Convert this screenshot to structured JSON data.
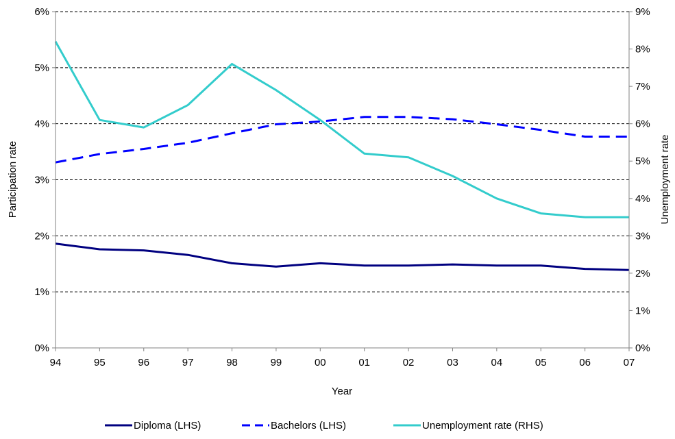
{
  "chart_data": {
    "type": "line",
    "xlabel": "Year",
    "ylabel_left": "Participation rate",
    "ylabel_right": "Unemployment rate",
    "categories": [
      "94",
      "95",
      "96",
      "97",
      "98",
      "99",
      "00",
      "01",
      "02",
      "03",
      "04",
      "05",
      "06",
      "07"
    ],
    "ylim_left": [
      0,
      6
    ],
    "ylim_right": [
      0,
      9
    ],
    "yticks_left": [
      "0%",
      "1%",
      "2%",
      "3%",
      "4%",
      "5%",
      "6%"
    ],
    "yticks_right": [
      "0%",
      "1%",
      "2%",
      "3%",
      "4%",
      "5%",
      "6%",
      "7%",
      "8%",
      "9%"
    ],
    "grid": "horizontal dashed",
    "legend_position": "bottom",
    "series": [
      {
        "name": "Diploma (LHS)",
        "axis": "left",
        "color": "#000080",
        "style": "solid",
        "values": [
          1.86,
          1.76,
          1.74,
          1.66,
          1.51,
          1.45,
          1.51,
          1.47,
          1.47,
          1.49,
          1.47,
          1.47,
          1.41,
          1.39
        ]
      },
      {
        "name": "Bachelors (LHS)",
        "axis": "left",
        "color": "#0000FF",
        "style": "dashed",
        "values": [
          3.31,
          3.46,
          3.55,
          3.66,
          3.83,
          3.99,
          4.04,
          4.12,
          4.12,
          4.08,
          3.99,
          3.89,
          3.77,
          3.77
        ]
      },
      {
        "name": "Unemployment rate (RHS)",
        "axis": "right",
        "color": "#33CCCC",
        "style": "solid",
        "values": [
          8.2,
          6.1,
          5.9,
          6.5,
          7.6,
          6.9,
          6.1,
          5.2,
          5.1,
          4.6,
          4.0,
          3.6,
          3.5,
          3.5
        ]
      }
    ]
  }
}
